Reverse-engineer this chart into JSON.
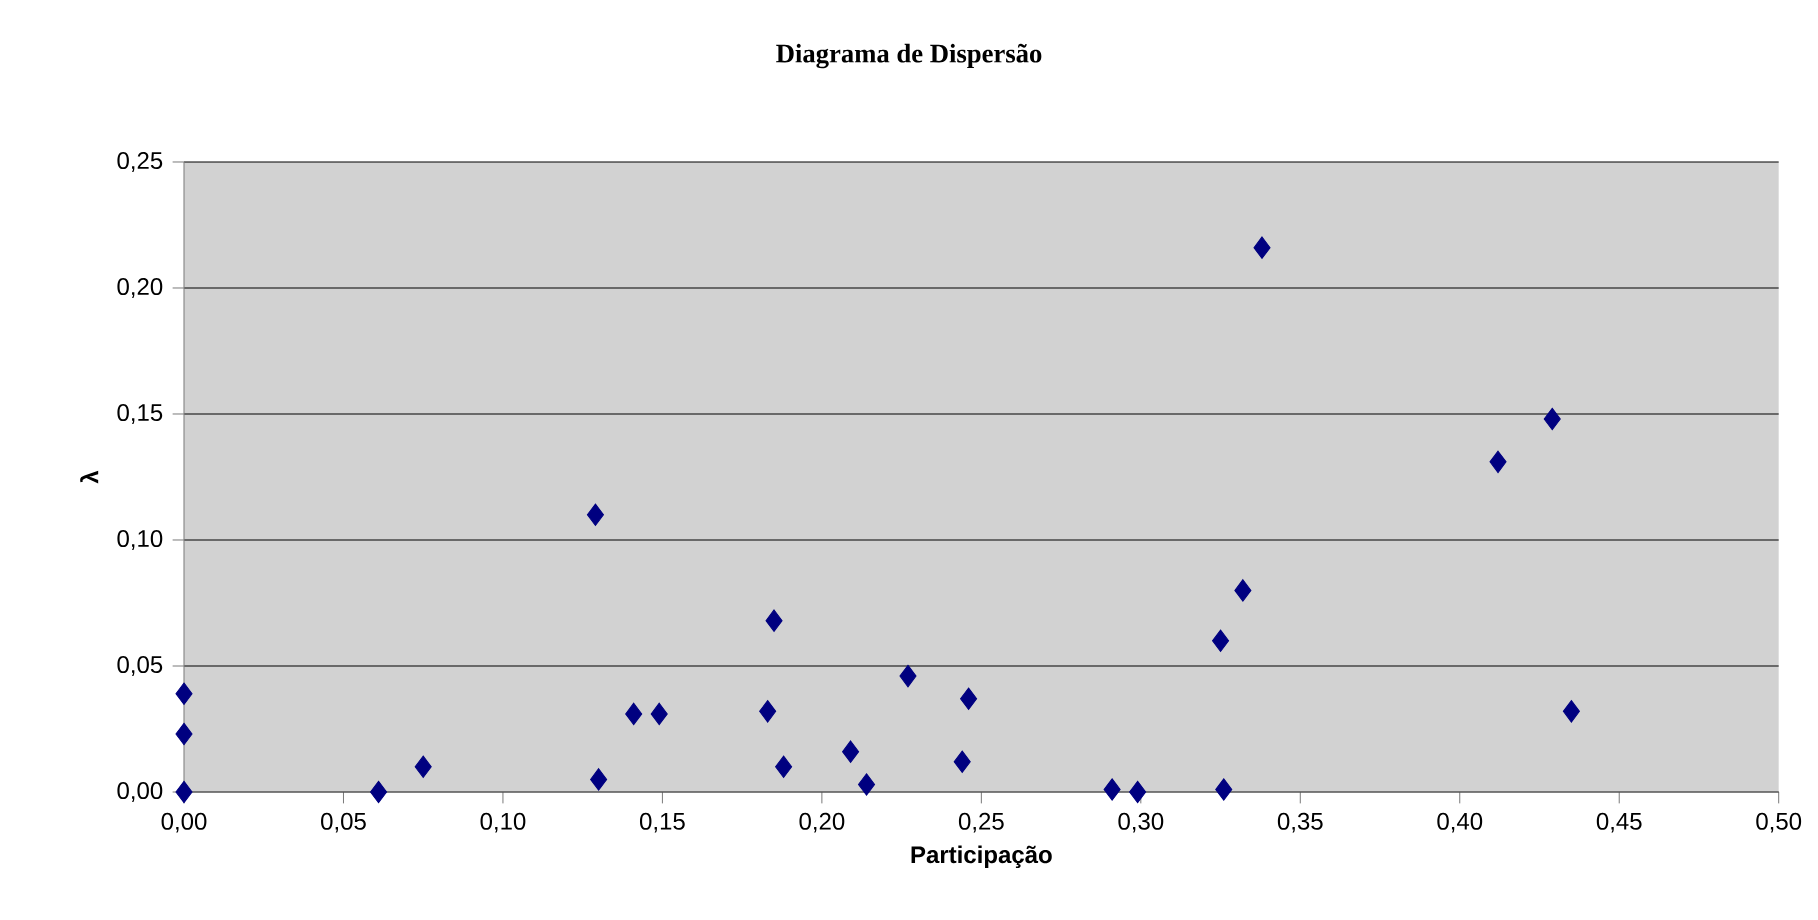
{
  "chart_data": {
    "type": "scatter",
    "title": "Diagrama de Dispersão",
    "xlabel": "Participação",
    "ylabel": "λ",
    "x": [
      0.0,
      0.0,
      0.0,
      0.061,
      0.075,
      0.129,
      0.13,
      0.141,
      0.149,
      0.183,
      0.185,
      0.188,
      0.209,
      0.214,
      0.227,
      0.244,
      0.246,
      0.291,
      0.299,
      0.325,
      0.326,
      0.332,
      0.338,
      0.412,
      0.429,
      0.435
    ],
    "values": [
      0.039,
      0.023,
      0.0,
      0.0,
      0.01,
      0.11,
      0.005,
      0.031,
      0.031,
      0.032,
      0.068,
      0.01,
      0.016,
      0.003,
      0.046,
      0.012,
      0.037,
      0.001,
      0.0,
      0.06,
      0.001,
      0.08,
      0.216,
      0.131,
      0.148,
      0.032
    ],
    "color": "#000080",
    "marker": "diamond",
    "grid": "y",
    "xlim": [
      0,
      0.5
    ],
    "ylim": [
      0,
      0.25
    ],
    "xticks": [
      {
        "value": 0,
        "label": "0,00"
      },
      {
        "value": 0.05,
        "label": "0,05"
      },
      {
        "value": 0.1,
        "label": "0,10"
      },
      {
        "value": 0.15,
        "label": "0,15"
      },
      {
        "value": 0.2,
        "label": "0,20"
      },
      {
        "value": 0.25,
        "label": "0,25"
      },
      {
        "value": 0.3,
        "label": "0,30"
      },
      {
        "value": 0.35,
        "label": "0,35"
      },
      {
        "value": 0.4,
        "label": "0,40"
      },
      {
        "value": 0.45,
        "label": "0,45"
      },
      {
        "value": 0.5,
        "label": "0,50"
      }
    ],
    "yticks": [
      {
        "value": 0,
        "label": "0,00"
      },
      {
        "value": 0.05,
        "label": "0,05"
      },
      {
        "value": 0.1,
        "label": "0,10"
      },
      {
        "value": 0.15,
        "label": "0,15"
      },
      {
        "value": 0.2,
        "label": "0,20"
      },
      {
        "value": 0.25,
        "label": "0,25"
      }
    ]
  }
}
